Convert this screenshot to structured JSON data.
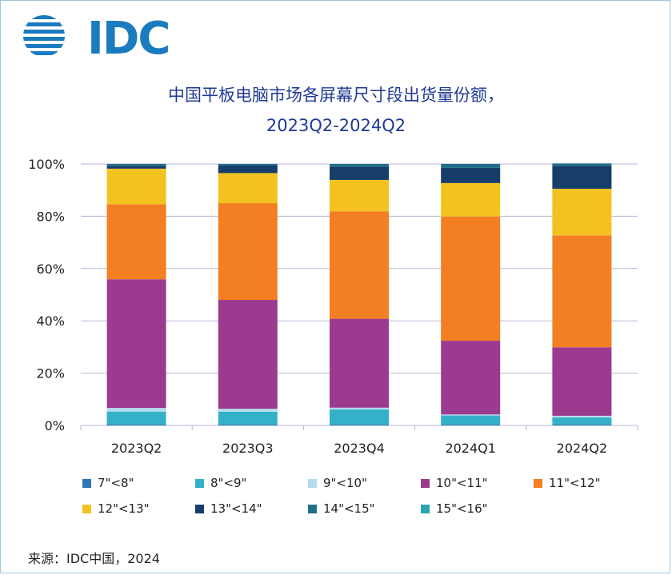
{
  "logo": {
    "text": "IDC",
    "color": "#1a7bbf"
  },
  "title_line1": "中国平板电脑市场各屏幕尺寸段出货量份额，",
  "title_line2": "2023Q2-2024Q2",
  "source": "来源：IDC中国，2024",
  "chart_data": {
    "type": "bar",
    "stacked": true,
    "title": "中国平板电脑市场各屏幕尺寸段出货量份额， 2023Q2-2024Q2",
    "xlabel": "",
    "ylabel": "",
    "ylim": [
      0,
      100
    ],
    "yticks": [
      "0%",
      "20%",
      "40%",
      "60%",
      "80%",
      "100%"
    ],
    "ytick_values": [
      0,
      20,
      40,
      60,
      80,
      100
    ],
    "grid": true,
    "legend_position": "bottom",
    "categories": [
      "2023Q2",
      "2023Q3",
      "2023Q4",
      "2024Q1",
      "2024Q2"
    ],
    "series": [
      {
        "name": "7\"<8\"",
        "color": "#2e75b6",
        "values": [
          0.3,
          0.3,
          0.3,
          0.3,
          0.3
        ]
      },
      {
        "name": "8\"<9\"",
        "color": "#35b0c9",
        "values": [
          5.0,
          4.9,
          5.8,
          3.5,
          2.8
        ]
      },
      {
        "name": "9\"<10\"",
        "color": "#b3dbee",
        "values": [
          1.4,
          1.2,
          0.7,
          0.4,
          0.6
        ]
      },
      {
        "name": "10\"<11\"",
        "color": "#9b3a8e",
        "values": [
          49.2,
          41.6,
          34.0,
          28.2,
          26.2
        ]
      },
      {
        "name": "11\"<12\"",
        "color": "#f37f22",
        "values": [
          28.7,
          37.0,
          41.1,
          47.5,
          42.8
        ]
      },
      {
        "name": "12\"<13\"",
        "color": "#f3c21f",
        "values": [
          13.6,
          11.5,
          12.0,
          12.8,
          17.8
        ]
      },
      {
        "name": "13\"<14\"",
        "color": "#173d6a",
        "values": [
          1.0,
          2.9,
          5.1,
          5.8,
          8.8
        ]
      },
      {
        "name": "14\"<15\"",
        "color": "#1f6f87",
        "values": [
          0.8,
          0.6,
          1.0,
          1.5,
          0.9
        ]
      },
      {
        "name": "15\"<16\"",
        "color": "#2aa5ae",
        "values": [
          0.0,
          0.0,
          0.0,
          0.0,
          0.0
        ]
      }
    ]
  }
}
